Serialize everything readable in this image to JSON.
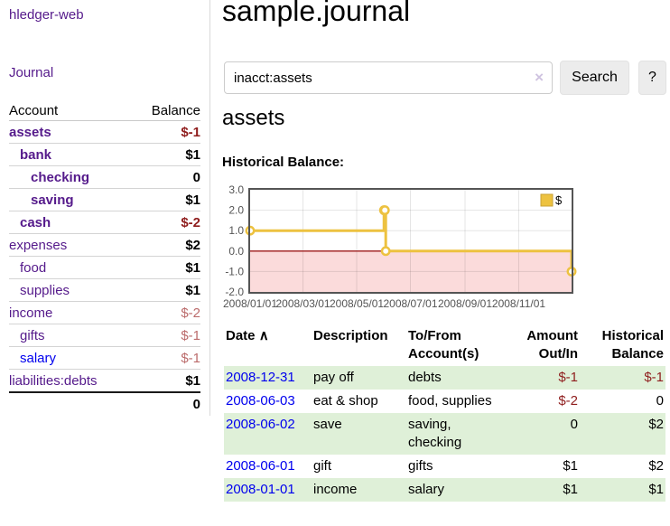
{
  "sidebar": {
    "brand": "hledger-web",
    "journal_label": "Journal",
    "accounts_table": {
      "headers": {
        "account": "Account",
        "balance": "Balance"
      },
      "rows": [
        {
          "name": "assets",
          "indent": 0,
          "bold": true,
          "balance": "$-1",
          "balance_bold": true,
          "neg": "strong"
        },
        {
          "name": "bank",
          "indent": 1,
          "bold": true,
          "balance": "$1",
          "balance_bold": true,
          "neg": "none"
        },
        {
          "name": "checking",
          "indent": 2,
          "bold": true,
          "balance": "0",
          "balance_bold": true,
          "neg": "none"
        },
        {
          "name": "saving",
          "indent": 2,
          "bold": true,
          "balance": "$1",
          "balance_bold": true,
          "neg": "none"
        },
        {
          "name": "cash",
          "indent": 1,
          "bold": true,
          "balance": "$-2",
          "balance_bold": true,
          "neg": "strong"
        },
        {
          "name": "expenses",
          "indent": 0,
          "bold": false,
          "balance": "$2",
          "balance_bold": true,
          "neg": "none"
        },
        {
          "name": "food",
          "indent": 1,
          "bold": false,
          "balance": "$1",
          "balance_bold": true,
          "neg": "none"
        },
        {
          "name": "supplies",
          "indent": 1,
          "bold": false,
          "balance": "$1",
          "balance_bold": true,
          "neg": "none"
        },
        {
          "name": "income",
          "indent": 0,
          "bold": false,
          "balance": "$-2",
          "balance_bold": false,
          "neg": "soft"
        },
        {
          "name": "gifts",
          "indent": 1,
          "bold": false,
          "balance": "$-1",
          "balance_bold": false,
          "neg": "soft"
        },
        {
          "name": "salary",
          "indent": 1,
          "bold": false,
          "balance": "$-1",
          "balance_bold": false,
          "neg": "soft",
          "link_color": "blue"
        },
        {
          "name": "liabilities:debts",
          "indent": 0,
          "bold": false,
          "balance": "$1",
          "balance_bold": true,
          "neg": "none"
        }
      ],
      "total": "0"
    }
  },
  "header": {
    "title": "sample.journal"
  },
  "search": {
    "value": "inacct:assets",
    "clear_icon": "×",
    "search_label": "Search",
    "help_label": "?"
  },
  "account_page": {
    "title": "assets",
    "chart_label": "Historical Balance:"
  },
  "chart_data": {
    "type": "line",
    "step": true,
    "title": "Historical Balance",
    "series": [
      {
        "name": "$",
        "color": "#edc240",
        "points": [
          {
            "date": "2008-01-01",
            "day": 0,
            "y": 1
          },
          {
            "date": "2008-06-01",
            "day": 152,
            "y": 2
          },
          {
            "date": "2008-06-02",
            "day": 153,
            "y": 2
          },
          {
            "date": "2008-06-03",
            "day": 154,
            "y": 0
          },
          {
            "date": "2008-12-31",
            "day": 365,
            "y": -1
          }
        ]
      }
    ],
    "x_ticks": [
      {
        "label": "2008/01/01",
        "day": 0
      },
      {
        "label": "2008/03/01",
        "day": 60
      },
      {
        "label": "2008/05/01",
        "day": 121
      },
      {
        "label": "2008/07/01",
        "day": 182
      },
      {
        "label": "2008/09/01",
        "day": 244
      },
      {
        "label": "2008/11/01",
        "day": 305
      }
    ],
    "y_ticks": [
      "3.0",
      "2.0",
      "1.0",
      "0.0",
      "-1.0",
      "-2.0"
    ],
    "xlim_days": [
      0,
      365
    ],
    "ylim": [
      -2,
      3
    ],
    "grid": true,
    "legend": {
      "position": "top-right",
      "label": "$"
    },
    "colors": {
      "line": "#edc240",
      "marker_fill": "#ffffff",
      "negative_fill": "#fbdbdb",
      "zero_line": "#9e1a1a",
      "grid": "rgba(0,0,0,0.10)",
      "border": "#545454",
      "axis_label": "#545454",
      "legend_box_border": "#c9a133"
    }
  },
  "transactions": {
    "headers": {
      "date": "Date",
      "sort_icon": "∧",
      "description": "Description",
      "accounts_line1": "To/From",
      "accounts_line2": "Account(s)",
      "amount_line1": "Amount",
      "amount_line2": "Out/In",
      "balance_line1": "Historical",
      "balance_line2": "Balance"
    },
    "rows": [
      {
        "date": "2008-12-31",
        "description": "pay off",
        "accounts_lines": [
          "debts"
        ],
        "amount": "$-1",
        "amount_negative": true,
        "balance": "$-1",
        "balance_negative": true,
        "highlight": true
      },
      {
        "date": "2008-06-03",
        "description": "eat & shop",
        "accounts_lines": [
          "food, supplies"
        ],
        "amount": "$-2",
        "amount_negative": true,
        "balance": "0",
        "balance_negative": false,
        "highlight": false
      },
      {
        "date": "2008-06-02",
        "description": "save",
        "accounts_lines": [
          "saving,",
          "checking"
        ],
        "amount": "0",
        "amount_negative": false,
        "balance": "$2",
        "balance_negative": false,
        "highlight": true
      },
      {
        "date": "2008-06-01",
        "description": "gift",
        "accounts_lines": [
          "gifts"
        ],
        "amount": "$1",
        "amount_negative": false,
        "balance": "$2",
        "balance_negative": false,
        "highlight": false
      },
      {
        "date": "2008-01-01",
        "description": "income",
        "accounts_lines": [
          "salary"
        ],
        "amount": "$1",
        "amount_negative": false,
        "balance": "$1",
        "balance_negative": false,
        "highlight": true
      }
    ]
  }
}
